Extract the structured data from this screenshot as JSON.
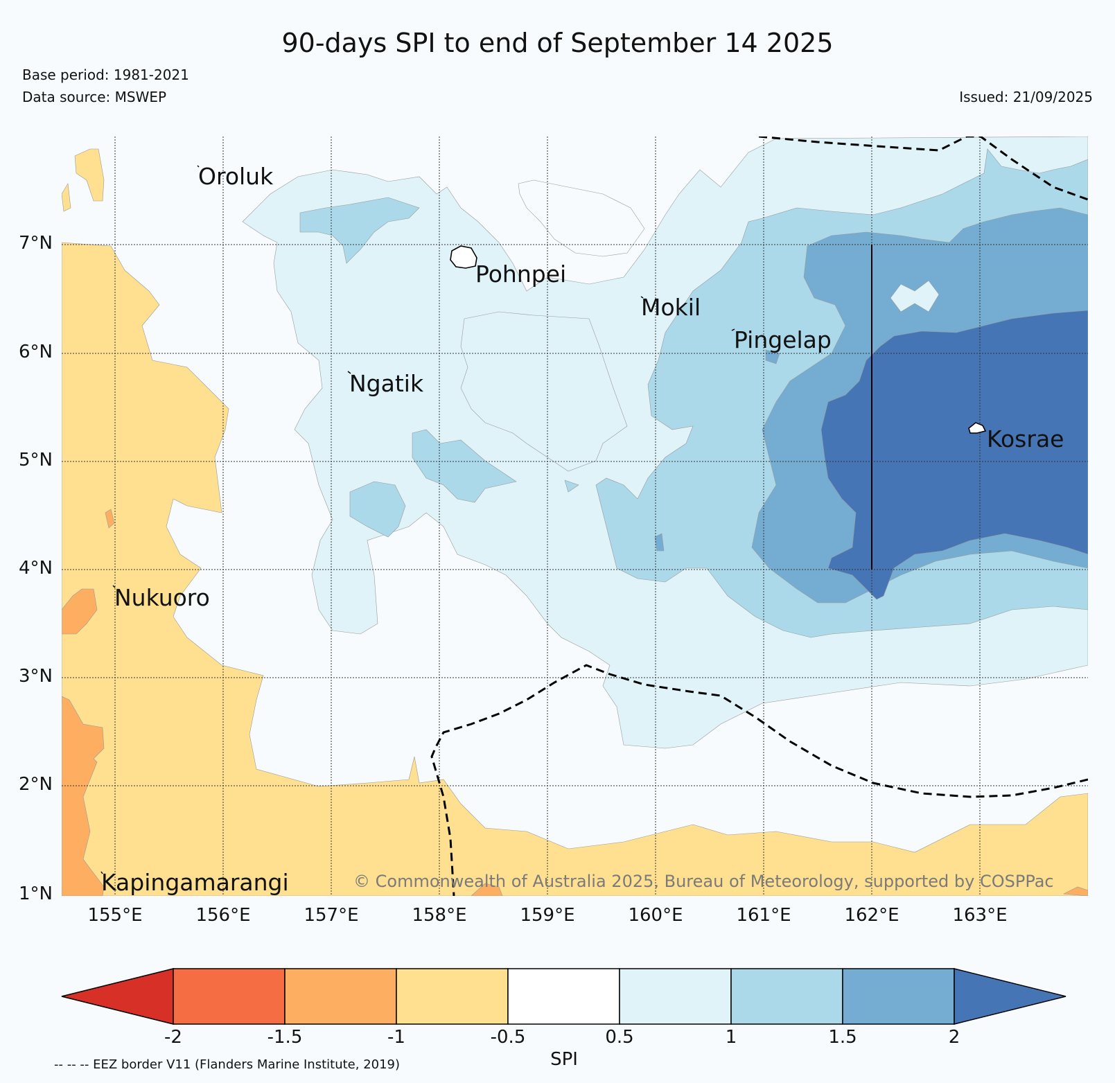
{
  "title": "90-days SPI to end of September 14 2025",
  "base_period": "Base period: 1981-2021",
  "data_source": "Data source: MSWEP",
  "issued": "Issued: 21/09/2025",
  "credit": "© Commonwealth of Australia 2025, Bureau of Meteorology, supported by COSPPac",
  "eez_note": "-- -- -- EEZ border V11 (Flanders Marine Institute, 2019)",
  "lat_labels": [
    "7°N",
    "6°N",
    "5°N",
    "4°N",
    "3°N",
    "2°N",
    "1°N"
  ],
  "lon_labels": [
    "155°E",
    "156°E",
    "157°E",
    "158°E",
    "159°E",
    "160°E",
    "161°E",
    "162°E",
    "163°E"
  ],
  "places": [
    {
      "name": "Oroluk"
    },
    {
      "name": "Pohnpei"
    },
    {
      "name": "Mokil"
    },
    {
      "name": "Pingelap"
    },
    {
      "name": "Ngatik"
    },
    {
      "name": "Kosrae"
    },
    {
      "name": "Nukuoro"
    },
    {
      "name": "Kapingamarangi"
    }
  ],
  "colorbar": {
    "title": "SPI",
    "ticks": [
      "-2",
      "-1.5",
      "-1",
      "-0.5",
      "0.5",
      "1",
      "1.5",
      "2"
    ],
    "colors": [
      "#d73027",
      "#f46d43",
      "#fdae61",
      "#fee090",
      "#f7fbfd",
      "#e0f3f8",
      "#abd9e9",
      "#74add1",
      "#4575b4"
    ]
  }
}
